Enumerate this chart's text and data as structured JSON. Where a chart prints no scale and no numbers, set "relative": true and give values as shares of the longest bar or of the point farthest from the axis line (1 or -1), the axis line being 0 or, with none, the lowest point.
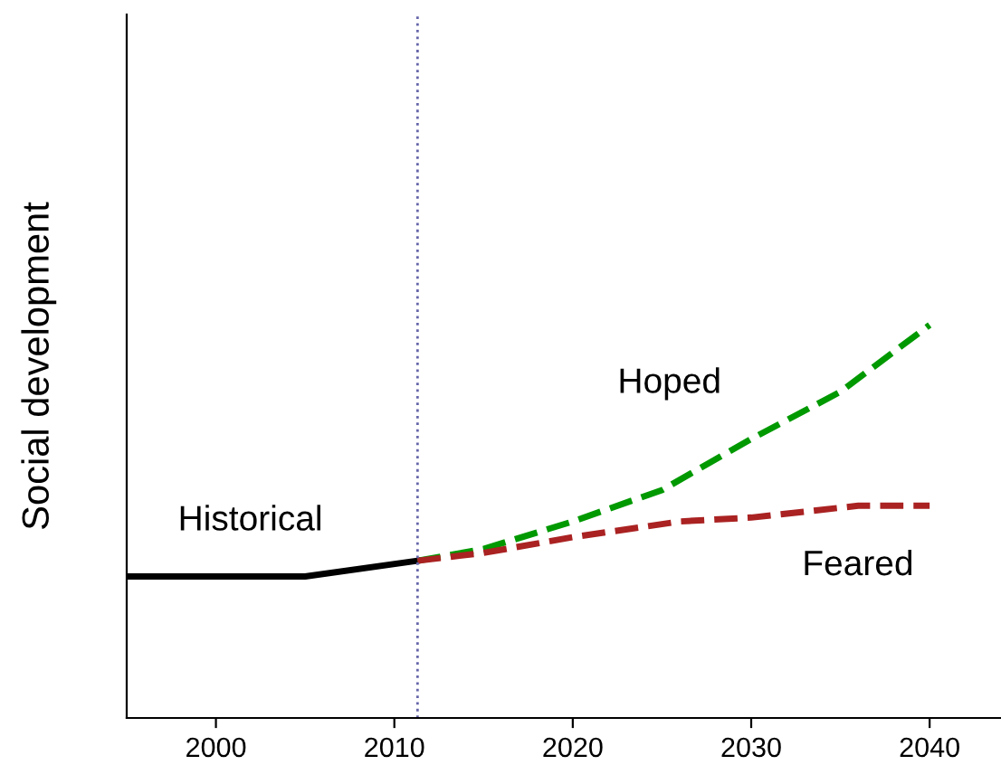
{
  "chart_data": {
    "type": "line",
    "ylabel": "Social development",
    "relative": true,
    "xlim": [
      1995,
      2044
    ],
    "xticks": [
      2000,
      2010,
      2020,
      2030,
      2040
    ],
    "grid": false,
    "legend": false,
    "series": [
      {
        "name": "Historical",
        "color": "#000000",
        "line_style": "solid",
        "x": [
          1995,
          2005,
          2011.3
        ],
        "values": [
          0.36,
          0.36,
          0.4
        ]
      },
      {
        "name": "Hoped",
        "color": "#009900",
        "line_style": "dashed",
        "x": [
          2011.3,
          2015,
          2020,
          2025,
          2030,
          2035,
          2040
        ],
        "values": [
          0.4,
          0.43,
          0.5,
          0.58,
          0.71,
          0.83,
          1.0
        ]
      },
      {
        "name": "Feared",
        "color": "#aa2222",
        "line_style": "dashed",
        "x": [
          2011.3,
          2015,
          2020,
          2026,
          2030,
          2036,
          2040
        ],
        "values": [
          0.4,
          0.42,
          0.46,
          0.5,
          0.51,
          0.54,
          0.54
        ]
      }
    ],
    "ref_lines": [
      {
        "axis": "x",
        "value": 2011.3,
        "color": "#6666aa",
        "line_style": "dotted"
      }
    ]
  }
}
